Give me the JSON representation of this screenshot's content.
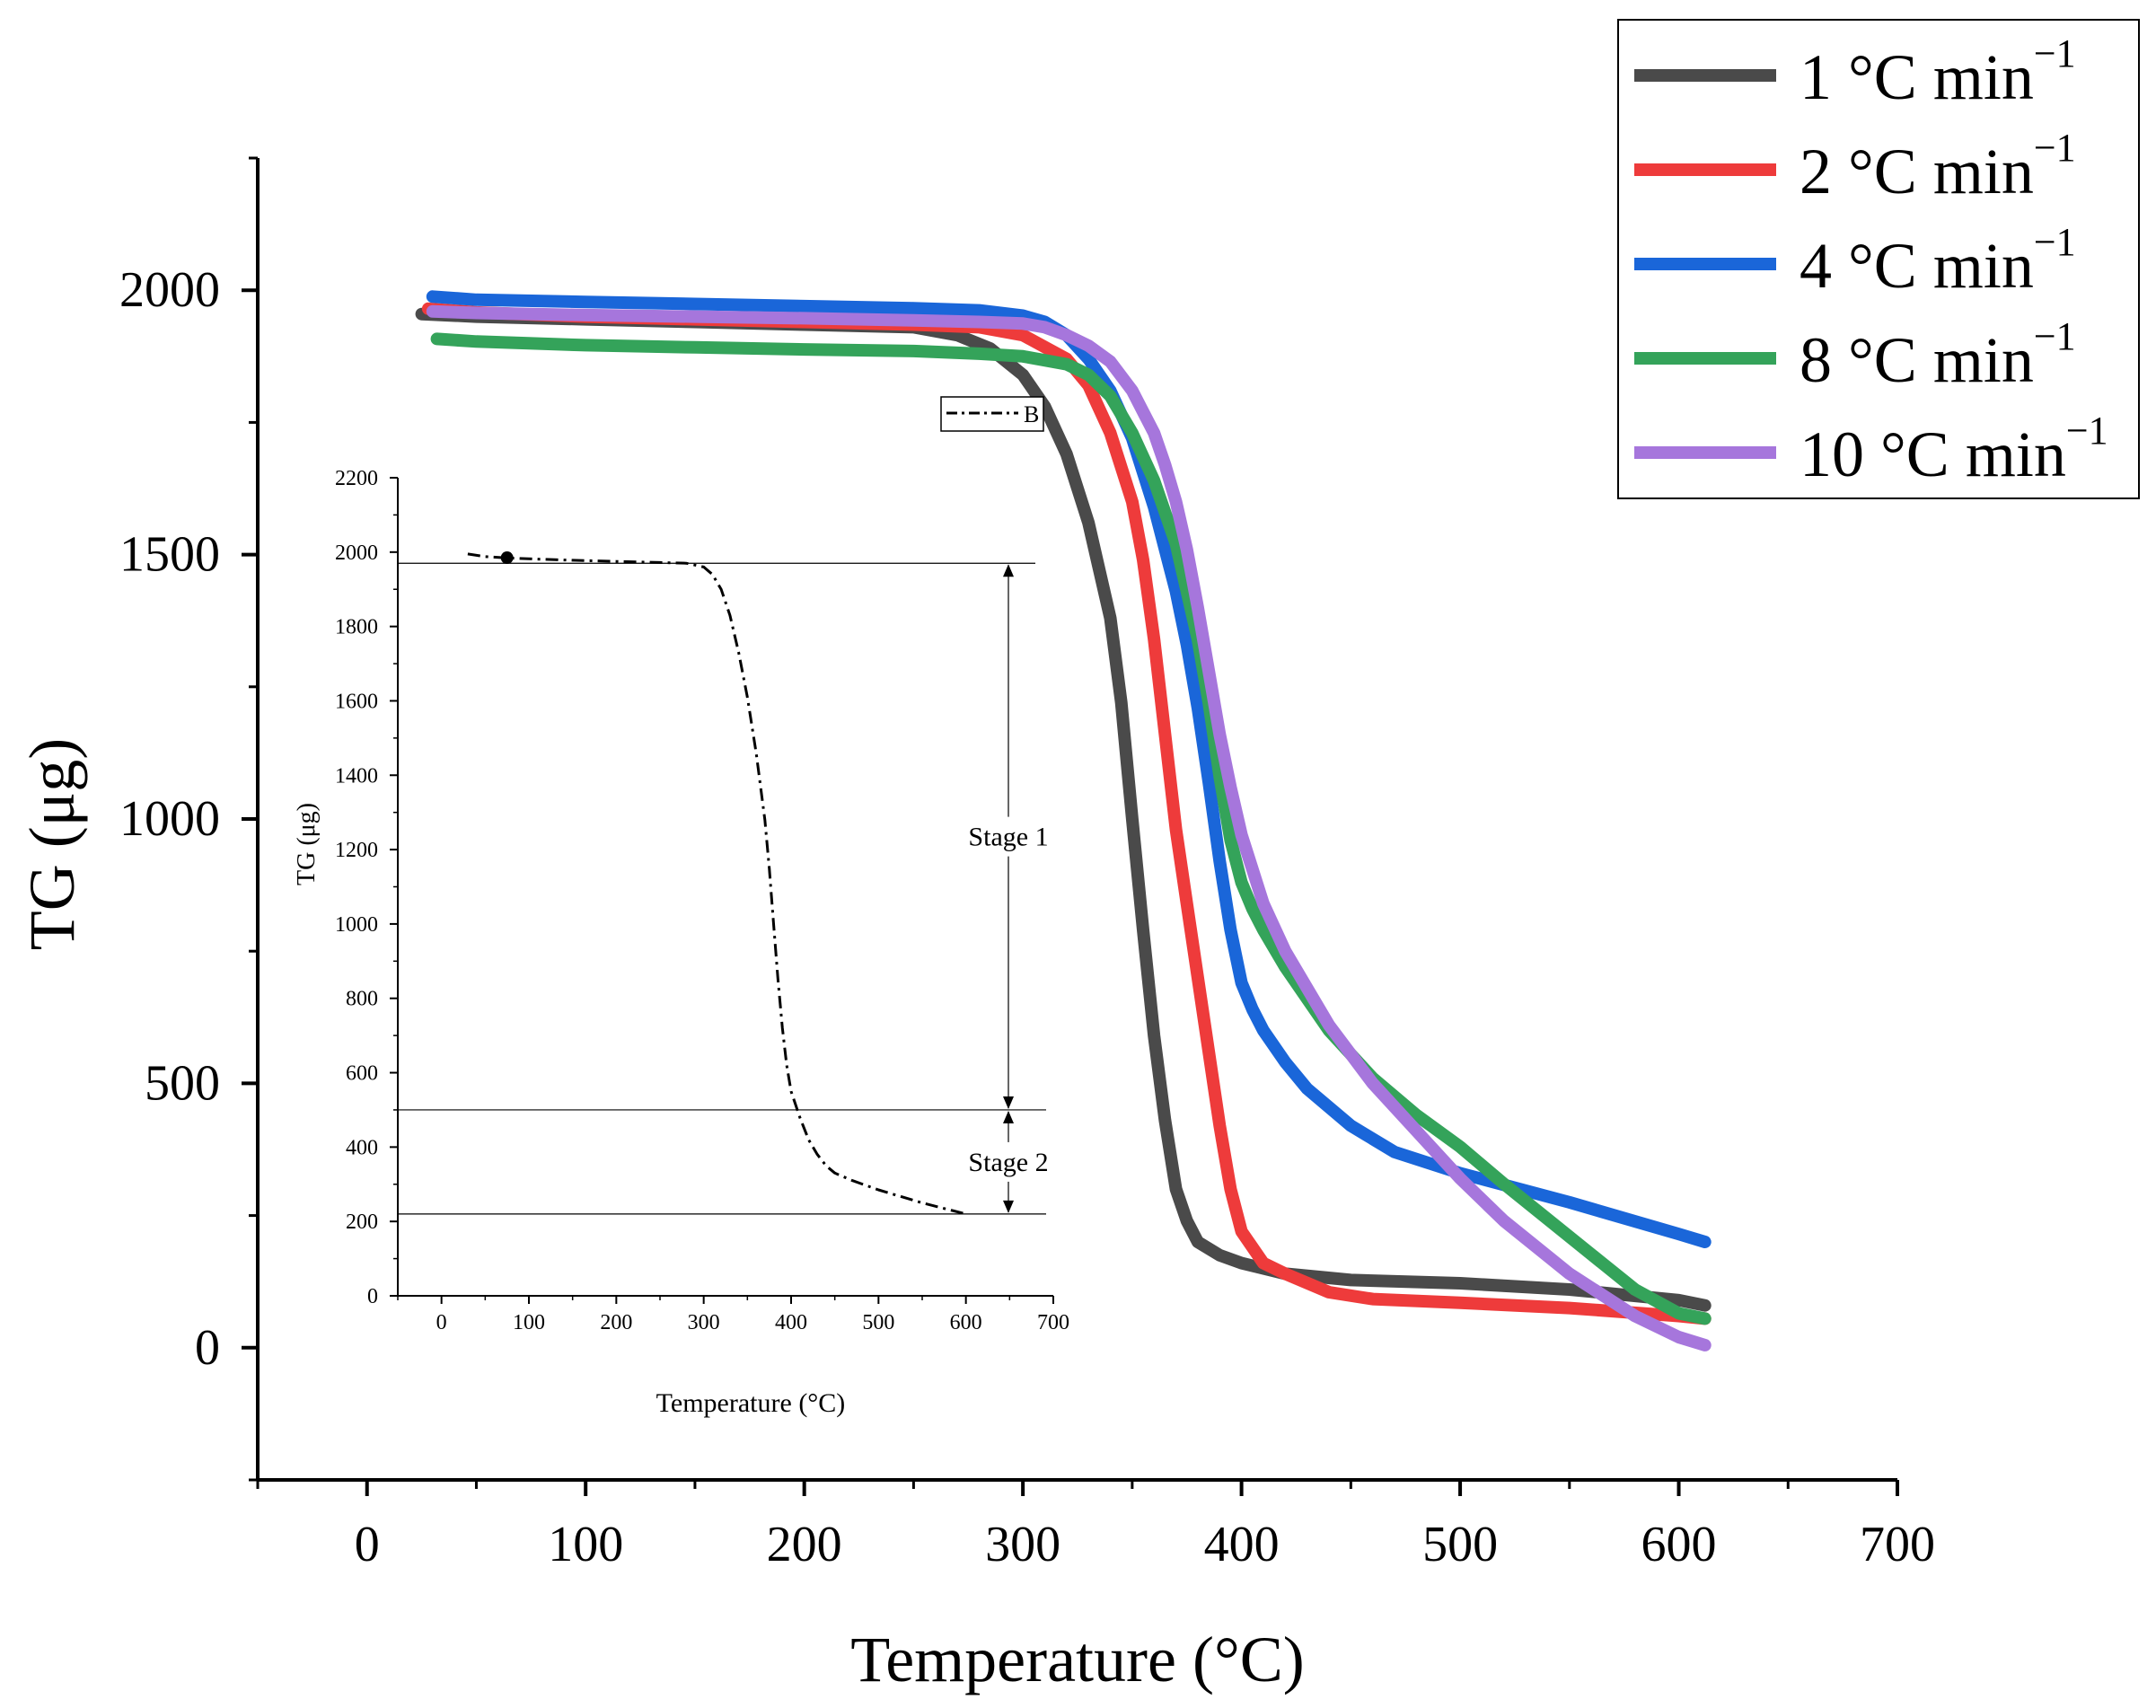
{
  "chart_data": [
    {
      "type": "line",
      "xlabel": "Temperature (°C)",
      "ylabel": "TG (μg)",
      "xlim": [
        -50,
        700
      ],
      "ylim": [
        -250,
        2250
      ],
      "xticks": [
        0,
        100,
        200,
        300,
        400,
        500,
        600,
        700
      ],
      "yticks": [
        0,
        500,
        1000,
        1500,
        2000
      ],
      "legend_position": "top-right",
      "series": [
        {
          "name": "1 °C min",
          "superscript": "−1",
          "color": "#4a4a4a",
          "x": [
            25,
            50,
            100,
            150,
            200,
            250,
            270,
            285,
            300,
            310,
            320,
            330,
            340,
            345,
            350,
            355,
            360,
            365,
            370,
            375,
            380,
            390,
            400,
            420,
            450,
            500,
            550,
            600,
            612
          ],
          "y": [
            1955,
            1950,
            1945,
            1940,
            1935,
            1930,
            1915,
            1890,
            1840,
            1780,
            1690,
            1560,
            1380,
            1220,
            1000,
            790,
            590,
            430,
            300,
            240,
            200,
            175,
            160,
            140,
            128,
            122,
            110,
            90,
            80
          ]
        },
        {
          "name": "2 °C min",
          "superscript": "−1",
          "color": "#ee3b3b",
          "x": [
            28,
            50,
            100,
            150,
            200,
            250,
            280,
            300,
            320,
            330,
            340,
            350,
            355,
            360,
            365,
            370,
            375,
            380,
            385,
            390,
            395,
            400,
            410,
            420,
            440,
            460,
            500,
            550,
            600,
            612
          ],
          "y": [
            1965,
            1958,
            1950,
            1945,
            1940,
            1935,
            1930,
            1915,
            1870,
            1820,
            1730,
            1600,
            1490,
            1340,
            1160,
            980,
            840,
            700,
            560,
            420,
            300,
            220,
            160,
            140,
            105,
            92,
            85,
            75,
            60,
            55
          ]
        },
        {
          "name": "4 °C min",
          "superscript": "−1",
          "color": "#1a66d9",
          "x": [
            30,
            50,
            100,
            150,
            200,
            250,
            280,
            300,
            310,
            320,
            330,
            340,
            350,
            360,
            370,
            375,
            380,
            385,
            390,
            395,
            400,
            405,
            410,
            420,
            430,
            450,
            470,
            500,
            550,
            600,
            612
          ],
          "y": [
            1988,
            1982,
            1978,
            1974,
            1970,
            1966,
            1962,
            1952,
            1940,
            1915,
            1870,
            1810,
            1720,
            1590,
            1430,
            1330,
            1210,
            1070,
            920,
            790,
            690,
            640,
            600,
            540,
            490,
            420,
            370,
            330,
            275,
            215,
            200
          ]
        },
        {
          "name": "8 °C min",
          "superscript": "−1",
          "color": "#34a35a",
          "x": [
            32,
            50,
            100,
            150,
            200,
            250,
            280,
            300,
            320,
            330,
            340,
            350,
            360,
            370,
            380,
            385,
            390,
            395,
            400,
            405,
            410,
            420,
            440,
            460,
            480,
            500,
            520,
            550,
            580,
            600,
            612
          ],
          "y": [
            1908,
            1903,
            1896,
            1892,
            1888,
            1885,
            1880,
            1875,
            1860,
            1840,
            1800,
            1730,
            1640,
            1520,
            1340,
            1220,
            1080,
            960,
            880,
            830,
            790,
            720,
            600,
            510,
            440,
            380,
            310,
            210,
            110,
            65,
            55
          ]
        },
        {
          "name": "10 °C min",
          "superscript": "−1",
          "color": "#a676dc",
          "x": [
            30,
            50,
            100,
            150,
            200,
            250,
            280,
            300,
            310,
            320,
            330,
            340,
            350,
            360,
            365,
            370,
            375,
            380,
            385,
            390,
            395,
            400,
            410,
            420,
            440,
            460,
            480,
            500,
            520,
            550,
            580,
            600,
            612
          ],
          "y": [
            1960,
            1957,
            1953,
            1950,
            1947,
            1943,
            1940,
            1937,
            1930,
            1915,
            1895,
            1865,
            1810,
            1730,
            1670,
            1600,
            1510,
            1400,
            1280,
            1160,
            1060,
            970,
            840,
            750,
            610,
            500,
            410,
            320,
            240,
            140,
            60,
            20,
            5
          ]
        }
      ]
    },
    {
      "type": "line",
      "inset": true,
      "xlabel": "Temperature (°C)",
      "ylabel": "TG (μg)",
      "xlim": [
        -50,
        700
      ],
      "ylim": [
        0,
        2200
      ],
      "xticks": [
        0,
        100,
        200,
        300,
        400,
        500,
        600,
        700
      ],
      "yticks": [
        0,
        200,
        400,
        600,
        800,
        1000,
        1200,
        1400,
        1600,
        1800,
        2000,
        2200
      ],
      "legend_position": "top-right",
      "series": [
        {
          "name": "B",
          "color": "#000000",
          "x": [
            30,
            50,
            70,
            100,
            150,
            200,
            250,
            280,
            300,
            310,
            320,
            330,
            340,
            350,
            360,
            370,
            375,
            380,
            385,
            390,
            395,
            400,
            410,
            420,
            430,
            440,
            450,
            470,
            500,
            550,
            600
          ],
          "y": [
            1995,
            1988,
            1985,
            1982,
            1978,
            1975,
            1972,
            1970,
            1960,
            1940,
            1900,
            1830,
            1730,
            1610,
            1460,
            1280,
            1150,
            1000,
            850,
            720,
            620,
            550,
            480,
            420,
            380,
            350,
            330,
            310,
            285,
            250,
            220
          ]
        }
      ],
      "marker": {
        "x": 75,
        "y": 1985
      },
      "reference_lines": [
        1970,
        500,
        220
      ],
      "annotations": [
        {
          "label": "Stage 1",
          "from": 1970,
          "to": 500
        },
        {
          "label": "Stage 2",
          "from": 500,
          "to": 220
        }
      ]
    }
  ]
}
